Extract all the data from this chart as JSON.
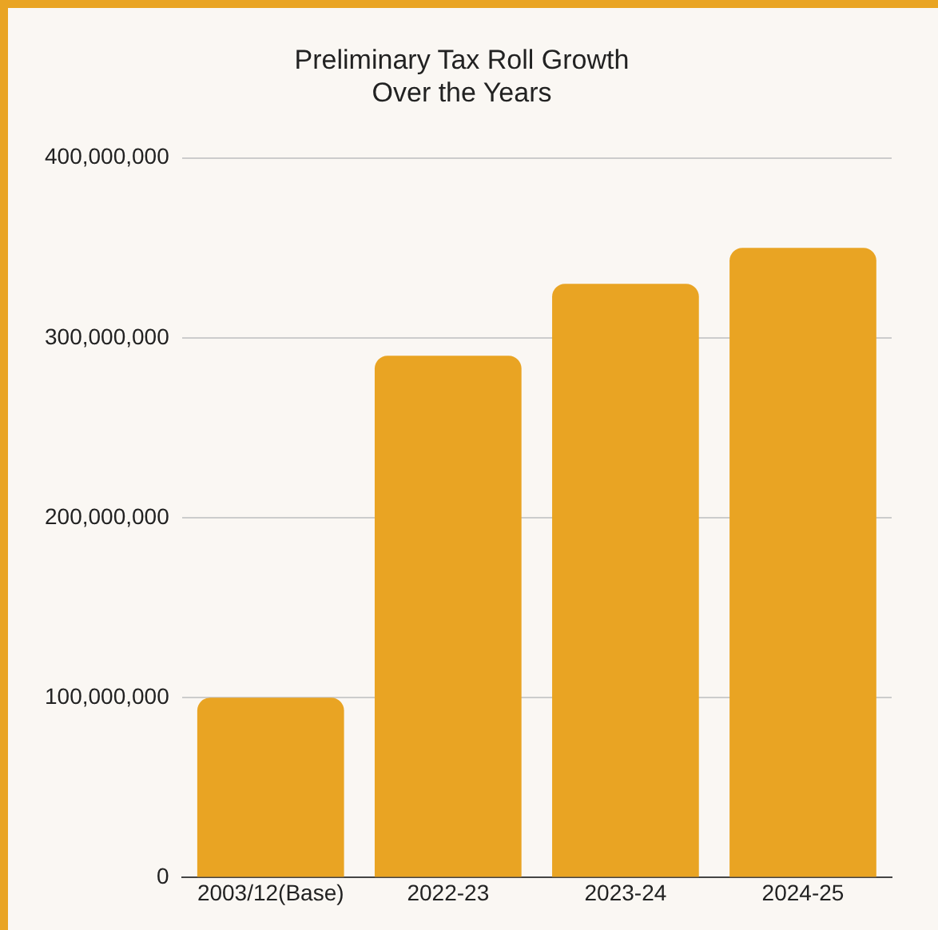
{
  "chart_data": {
    "type": "bar",
    "title": "Preliminary Tax Roll Growth Over the Years",
    "categories": [
      "2003/12(Base)",
      "2022-23",
      "2023-24",
      "2024-25"
    ],
    "values": [
      100000000,
      290000000,
      330000000,
      350000000
    ],
    "color": "#e9a423",
    "ylim": [
      0,
      400000000
    ],
    "yticks": [
      0,
      {
        "value": 100000000,
        "label": "100,000,000"
      },
      {
        "value": 200000000,
        "label": "200,000,000"
      },
      {
        "value": 300000000,
        "label": "300,000,000"
      },
      {
        "value": 400000000,
        "label": "400,000,000"
      }
    ],
    "grid": "y"
  }
}
